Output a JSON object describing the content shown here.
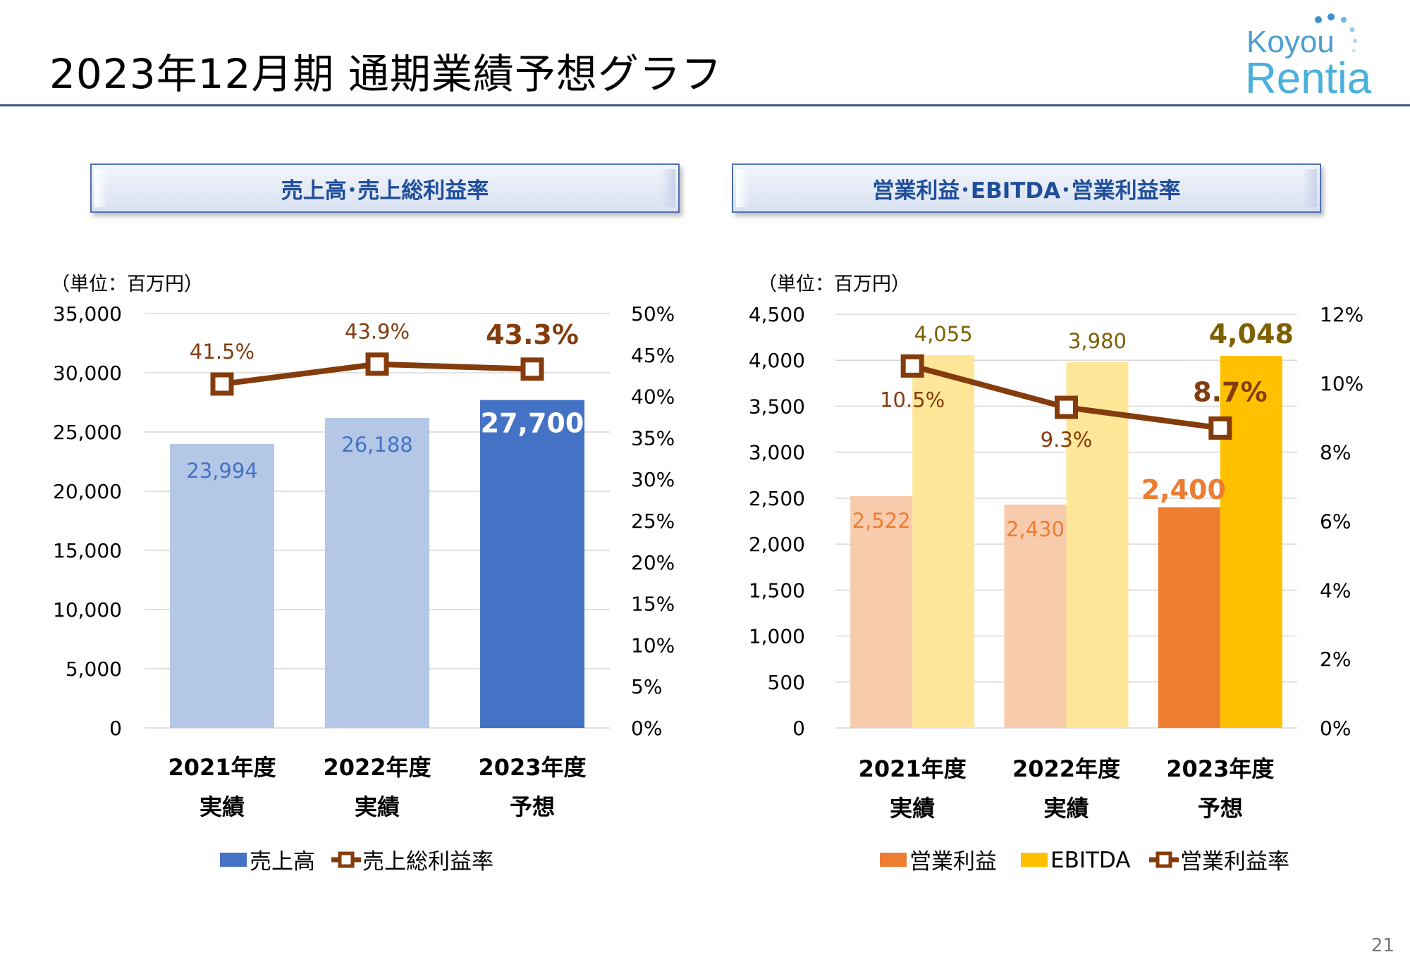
{
  "page": {
    "title": "2023年12月期 通期業績予想グラフ",
    "page_number": "21",
    "logo": {
      "line1": "Koyou",
      "line2": "Rentia"
    }
  },
  "colors": {
    "rule": "#3d5a7a",
    "header_text": "#1f4e9a",
    "sales_past": "#b4c7e7",
    "sales_forecast": "#4472c4",
    "line": "#843c0c",
    "op_past": "#f8cbad",
    "op_forecast": "#ed7d31",
    "ebitda_past": "#ffe699",
    "ebitda_forecast": "#ffc000",
    "ebitda_label": "#7f6000"
  },
  "chart_data": [
    {
      "type": "bar",
      "header": "売上高･売上総利益率",
      "unit_label": "（単位：百万円）",
      "categories": [
        {
          "line1": "2021年度",
          "line2": "実績"
        },
        {
          "line1": "2022年度",
          "line2": "実績"
        },
        {
          "line1": "2023年度",
          "line2": "予想"
        }
      ],
      "ylim": [
        0,
        35000
      ],
      "y_ticks": [
        "0",
        "5,000",
        "10,000",
        "15,000",
        "20,000",
        "25,000",
        "30,000",
        "35,000"
      ],
      "y2lim": [
        0,
        50
      ],
      "y2_ticks": [
        "0%",
        "5%",
        "10%",
        "15%",
        "20%",
        "25%",
        "30%",
        "35%",
        "40%",
        "45%",
        "50%"
      ],
      "grid": true,
      "legend_position": "bottom",
      "series": [
        {
          "name": "売上高",
          "kind": "bar",
          "axis": "left",
          "values": [
            23994,
            26188,
            27700
          ],
          "labels": [
            "23,994",
            "26,188",
            "27,700"
          ]
        },
        {
          "name": "売上総利益率",
          "kind": "line",
          "axis": "right",
          "values": [
            41.5,
            43.9,
            43.3
          ],
          "labels": [
            "41.5%",
            "43.9%",
            "43.3%"
          ]
        }
      ]
    },
    {
      "type": "bar",
      "header": "営業利益･EBITDA･営業利益率",
      "unit_label": "（単位：百万円）",
      "categories": [
        {
          "line1": "2021年度",
          "line2": "実績"
        },
        {
          "line1": "2022年度",
          "line2": "実績"
        },
        {
          "line1": "2023年度",
          "line2": "予想"
        }
      ],
      "ylim": [
        0,
        4500
      ],
      "y_ticks": [
        "0",
        "500",
        "1,000",
        "1,500",
        "2,000",
        "2,500",
        "3,000",
        "3,500",
        "4,000",
        "4,500"
      ],
      "y2lim": [
        0,
        12
      ],
      "y2_ticks": [
        "0%",
        "2%",
        "4%",
        "6%",
        "8%",
        "10%",
        "12%"
      ],
      "grid": true,
      "legend_position": "bottom",
      "series": [
        {
          "name": "営業利益",
          "kind": "bar",
          "axis": "left",
          "values": [
            2522,
            2430,
            2400
          ],
          "labels": [
            "2,522",
            "2,430",
            "2,400"
          ]
        },
        {
          "name": "EBITDA",
          "kind": "bar",
          "axis": "left",
          "values": [
            4055,
            3980,
            4048
          ],
          "labels": [
            "4,055",
            "3,980",
            "4,048"
          ]
        },
        {
          "name": "営業利益率",
          "kind": "line",
          "axis": "right",
          "values": [
            10.5,
            9.3,
            8.7
          ],
          "labels": [
            "10.5%",
            "9.3%",
            "8.7%"
          ]
        }
      ]
    }
  ]
}
